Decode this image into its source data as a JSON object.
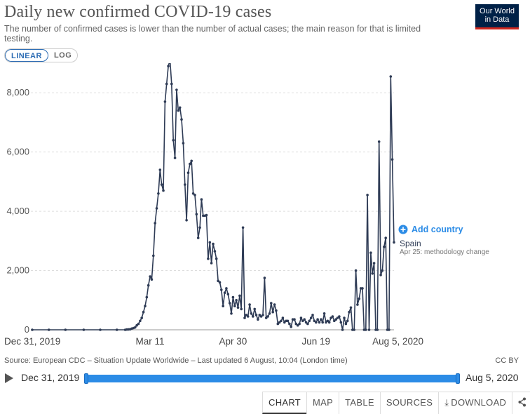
{
  "header": {
    "title": "Daily new confirmed COVID-19 cases",
    "subtitle": "The number of confirmed cases is lower than the number of actual cases; the main reason for that is limited testing.",
    "logo_line1": "Our World",
    "logo_line2": "in Data"
  },
  "scale_toggle": {
    "linear_label": "LINEAR",
    "log_label": "LOG",
    "selected": "linear"
  },
  "colors": {
    "series": "#2e3b55",
    "accent": "#2c8ce6",
    "logo_bg": "#002147"
  },
  "chart_data": {
    "type": "line",
    "title": "Daily new confirmed COVID-19 cases",
    "x_start": "2019-12-31",
    "x_end": "2020-08-05",
    "ylim": [
      0,
      9000
    ],
    "grid": true,
    "y_ticks": [
      0,
      2000,
      4000,
      6000,
      8000
    ],
    "y_tick_labels": [
      "0",
      "2,000",
      "4,000",
      "6,000",
      "8,000"
    ],
    "x_ticks": [
      "2019-12-31",
      "2020-03-11",
      "2020-04-30",
      "2020-06-19",
      "2020-08-05"
    ],
    "x_tick_labels": [
      "Dec 31, 2019",
      "Mar 11",
      "Apr 30",
      "Jun 19",
      "Aug 5, 2020"
    ],
    "add_country_label": "Add country",
    "series": [
      {
        "name": "Spain",
        "annotation": "Apr 25: methodology change",
        "points": [
          [
            "2019-12-31",
            0
          ],
          [
            "2020-01-10",
            0
          ],
          [
            "2020-01-20",
            0
          ],
          [
            "2020-01-31",
            0
          ],
          [
            "2020-02-10",
            0
          ],
          [
            "2020-02-20",
            0
          ],
          [
            "2020-02-25",
            0
          ],
          [
            "2020-02-26",
            10
          ],
          [
            "2020-02-27",
            15
          ],
          [
            "2020-02-28",
            20
          ],
          [
            "2020-02-29",
            40
          ],
          [
            "2020-03-01",
            60
          ],
          [
            "2020-03-02",
            80
          ],
          [
            "2020-03-03",
            150
          ],
          [
            "2020-03-04",
            200
          ],
          [
            "2020-03-05",
            300
          ],
          [
            "2020-03-06",
            400
          ],
          [
            "2020-03-07",
            600
          ],
          [
            "2020-03-08",
            800
          ],
          [
            "2020-03-09",
            1100
          ],
          [
            "2020-03-10",
            1500
          ],
          [
            "2020-03-11",
            1800
          ],
          [
            "2020-03-12",
            1700
          ],
          [
            "2020-03-13",
            2500
          ],
          [
            "2020-03-14",
            3600
          ],
          [
            "2020-03-15",
            4100
          ],
          [
            "2020-03-16",
            4600
          ],
          [
            "2020-03-17",
            5400
          ],
          [
            "2020-03-18",
            4900
          ],
          [
            "2020-03-19",
            4700
          ],
          [
            "2020-03-20",
            7700
          ],
          [
            "2020-03-21",
            8300
          ],
          [
            "2020-03-22",
            8900
          ],
          [
            "2020-03-23",
            9100
          ],
          [
            "2020-03-24",
            8300
          ],
          [
            "2020-03-25",
            6400
          ],
          [
            "2020-03-26",
            5800
          ],
          [
            "2020-03-27",
            8100
          ],
          [
            "2020-03-28",
            7400
          ],
          [
            "2020-03-29",
            7500
          ],
          [
            "2020-03-30",
            7100
          ],
          [
            "2020-03-31",
            6300
          ],
          [
            "2020-04-01",
            4900
          ],
          [
            "2020-04-02",
            3700
          ],
          [
            "2020-04-03",
            5300
          ],
          [
            "2020-04-04",
            5600
          ],
          [
            "2020-04-05",
            5700
          ],
          [
            "2020-04-06",
            4600
          ],
          [
            "2020-04-07",
            4550
          ],
          [
            "2020-04-08",
            3900
          ],
          [
            "2020-04-09",
            3100
          ],
          [
            "2020-04-10",
            3450
          ],
          [
            "2020-04-11",
            4400
          ],
          [
            "2020-04-12",
            3850
          ],
          [
            "2020-04-13",
            3850
          ],
          [
            "2020-04-14",
            3870
          ],
          [
            "2020-04-15",
            2400
          ],
          [
            "2020-04-16",
            2950
          ],
          [
            "2020-04-17",
            2250
          ],
          [
            "2020-04-18",
            2900
          ],
          [
            "2020-04-19",
            2650
          ],
          [
            "2020-04-20",
            2400
          ],
          [
            "2020-04-21",
            1650
          ],
          [
            "2020-04-22",
            1600
          ],
          [
            "2020-04-23",
            1350
          ],
          [
            "2020-04-24",
            800
          ],
          [
            "2020-04-25",
            1250
          ],
          [
            "2020-04-26",
            1400
          ],
          [
            "2020-04-27",
            1200
          ],
          [
            "2020-04-28",
            900
          ],
          [
            "2020-04-29",
            550
          ],
          [
            "2020-04-30",
            1100
          ],
          [
            "2020-05-01",
            800
          ],
          [
            "2020-05-02",
            1000
          ],
          [
            "2020-05-03",
            750
          ],
          [
            "2020-05-04",
            1150
          ],
          [
            "2020-05-05",
            700
          ],
          [
            "2020-05-06",
            3450
          ],
          [
            "2020-05-07",
            400
          ],
          [
            "2020-05-08",
            500
          ],
          [
            "2020-05-09",
            450
          ],
          [
            "2020-05-10",
            850
          ],
          [
            "2020-05-11",
            550
          ],
          [
            "2020-05-12",
            450
          ],
          [
            "2020-05-13",
            700
          ],
          [
            "2020-05-14",
            500
          ],
          [
            "2020-05-15",
            350
          ],
          [
            "2020-05-16",
            500
          ],
          [
            "2020-05-17",
            450
          ],
          [
            "2020-05-18",
            500
          ],
          [
            "2020-05-19",
            1750
          ],
          [
            "2020-05-20",
            400
          ],
          [
            "2020-05-21",
            450
          ],
          [
            "2020-05-22",
            550
          ],
          [
            "2020-05-23",
            900
          ],
          [
            "2020-05-24",
            600
          ],
          [
            "2020-05-25",
            850
          ],
          [
            "2020-05-26",
            650
          ],
          [
            "2020-05-27",
            200
          ],
          [
            "2020-05-28",
            250
          ],
          [
            "2020-05-29",
            300
          ],
          [
            "2020-05-30",
            400
          ],
          [
            "2020-05-31",
            250
          ],
          [
            "2020-06-01",
            300
          ],
          [
            "2020-06-02",
            300
          ],
          [
            "2020-06-03",
            200
          ],
          [
            "2020-06-04",
            100
          ],
          [
            "2020-06-05",
            350
          ],
          [
            "2020-06-06",
            350
          ],
          [
            "2020-06-07",
            200
          ],
          [
            "2020-06-08",
            150
          ],
          [
            "2020-06-09",
            200
          ],
          [
            "2020-06-10",
            400
          ],
          [
            "2020-06-11",
            300
          ],
          [
            "2020-06-12",
            350
          ],
          [
            "2020-06-13",
            250
          ],
          [
            "2020-06-14",
            200
          ],
          [
            "2020-06-15",
            300
          ],
          [
            "2020-06-16",
            400
          ],
          [
            "2020-06-17",
            500
          ],
          [
            "2020-06-18",
            300
          ],
          [
            "2020-06-19",
            250
          ],
          [
            "2020-06-20",
            350
          ],
          [
            "2020-06-21",
            250
          ],
          [
            "2020-06-22",
            350
          ],
          [
            "2020-06-23",
            250
          ],
          [
            "2020-06-24",
            550
          ],
          [
            "2020-06-25",
            250
          ],
          [
            "2020-06-26",
            300
          ],
          [
            "2020-06-27",
            250
          ],
          [
            "2020-06-28",
            400
          ],
          [
            "2020-06-29",
            450
          ],
          [
            "2020-06-30",
            300
          ],
          [
            "2020-07-01",
            350
          ],
          [
            "2020-07-02",
            400
          ],
          [
            "2020-07-03",
            450
          ],
          [
            "2020-07-04",
            250
          ],
          [
            "2020-07-05",
            0
          ],
          [
            "2020-07-06",
            400
          ],
          [
            "2020-07-07",
            200
          ],
          [
            "2020-07-08",
            300
          ],
          [
            "2020-07-09",
            600
          ],
          [
            "2020-07-10",
            750
          ],
          [
            "2020-07-11",
            0
          ],
          [
            "2020-07-12",
            0
          ],
          [
            "2020-07-13",
            2000
          ],
          [
            "2020-07-14",
            850
          ],
          [
            "2020-07-15",
            1050
          ],
          [
            "2020-07-16",
            1400
          ],
          [
            "2020-07-17",
            1400
          ],
          [
            "2020-07-18",
            0
          ],
          [
            "2020-07-19",
            0
          ],
          [
            "2020-07-20",
            4550
          ],
          [
            "2020-07-21",
            0
          ],
          [
            "2020-07-22",
            2600
          ],
          [
            "2020-07-23",
            1900
          ],
          [
            "2020-07-24",
            2250
          ],
          [
            "2020-07-25",
            0
          ],
          [
            "2020-07-26",
            0
          ],
          [
            "2020-07-27",
            6350
          ],
          [
            "2020-07-28",
            1850
          ],
          [
            "2020-07-29",
            2000
          ],
          [
            "2020-07-30",
            2800
          ],
          [
            "2020-07-31",
            3100
          ],
          [
            "2020-08-01",
            0
          ],
          [
            "2020-08-02",
            0
          ],
          [
            "2020-08-03",
            8550
          ],
          [
            "2020-08-04",
            5750
          ],
          [
            "2020-08-05",
            2950
          ]
        ]
      }
    ]
  },
  "footer": {
    "source": "Source: European CDC – Situation Update Worldwide – Last updated 6 August, 10:04 (London time)",
    "license": "CC BY"
  },
  "timeline": {
    "start_label": "Dec 31, 2019",
    "end_label": "Aug 5, 2020"
  },
  "tabs": [
    {
      "label": "CHART",
      "active": true
    },
    {
      "label": "MAP",
      "active": false
    },
    {
      "label": "TABLE",
      "active": false
    },
    {
      "label": "SOURCES",
      "active": false
    },
    {
      "label": "DOWNLOAD",
      "active": false
    }
  ]
}
